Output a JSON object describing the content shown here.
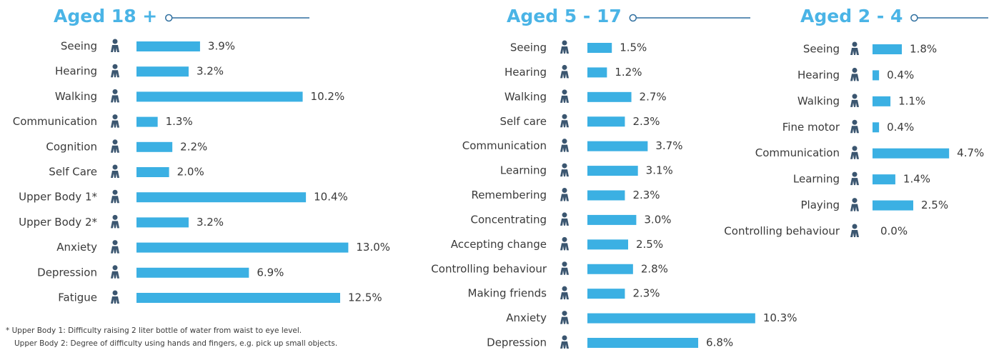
{
  "chart_data": [
    {
      "type": "bar",
      "orientation": "horizontal",
      "title": "Aged 18 +",
      "color": "#3bb0e3",
      "categories": [
        "Seeing",
        "Hearing",
        "Walking",
        "Communication",
        "Cognition",
        "Self Care",
        "Upper Body 1*",
        "Upper Body 2*",
        "Anxiety",
        "Depression",
        "Fatigue"
      ],
      "values": [
        3.9,
        3.2,
        10.2,
        1.3,
        2.2,
        2.0,
        10.4,
        3.2,
        13.0,
        6.9,
        12.5
      ],
      "value_labels": [
        "3.9%",
        "3.2%",
        "10.2%",
        "1.3%",
        "2.2%",
        "2.0%",
        "10.4%",
        "3.2%",
        "13.0%",
        "6.9%",
        "12.5%"
      ],
      "annotations": [
        "* Upper Body 1: Difficulty raising 2 liter bottle of water from waist to eye level.",
        "Upper Body 2: Degree of difficulty using hands and fingers, e.g. pick up small objects."
      ]
    },
    {
      "type": "bar",
      "orientation": "horizontal",
      "title": "Aged 5 - 17",
      "color": "#3bb0e3",
      "categories": [
        "Seeing",
        "Hearing",
        "Walking",
        "Self care",
        "Communication",
        "Learning",
        "Remembering",
        "Concentrating",
        "Accepting change",
        "Controlling behaviour",
        "Making friends",
        "Anxiety",
        "Depression"
      ],
      "values": [
        1.5,
        1.2,
        2.7,
        2.3,
        3.7,
        3.1,
        2.3,
        3.0,
        2.5,
        2.8,
        2.3,
        10.3,
        6.8
      ],
      "value_labels": [
        "1.5%",
        "1.2%",
        "2.7%",
        "2.3%",
        "3.7%",
        "3.1%",
        "2.3%",
        "3.0%",
        "2.5%",
        "2.8%",
        "2.3%",
        "10.3%",
        "6.8%"
      ]
    },
    {
      "type": "bar",
      "orientation": "horizontal",
      "title": "Aged 2 - 4",
      "color": "#3bb0e3",
      "categories": [
        "Seeing",
        "Hearing",
        "Walking",
        "Fine motor",
        "Communication",
        "Learning",
        "Playing",
        "Controlling behaviour"
      ],
      "values": [
        1.8,
        0.4,
        1.1,
        0.4,
        4.7,
        1.4,
        2.5,
        0.0
      ],
      "value_labels": [
        "1.8%",
        "0.4%",
        "1.1%",
        "0.4%",
        "4.7%",
        "1.4%",
        "2.5%",
        "0.0%"
      ]
    }
  ]
}
